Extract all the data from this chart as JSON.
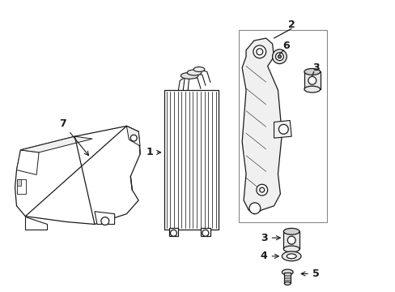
{
  "bg_color": "#ffffff",
  "line_color": "#1a1a1a",
  "fig_width": 4.89,
  "fig_height": 3.6,
  "dpi": 100,
  "gray_fill": "#e8e8e8",
  "light_gray": "#d0d0d0",
  "box_color": "#888888"
}
